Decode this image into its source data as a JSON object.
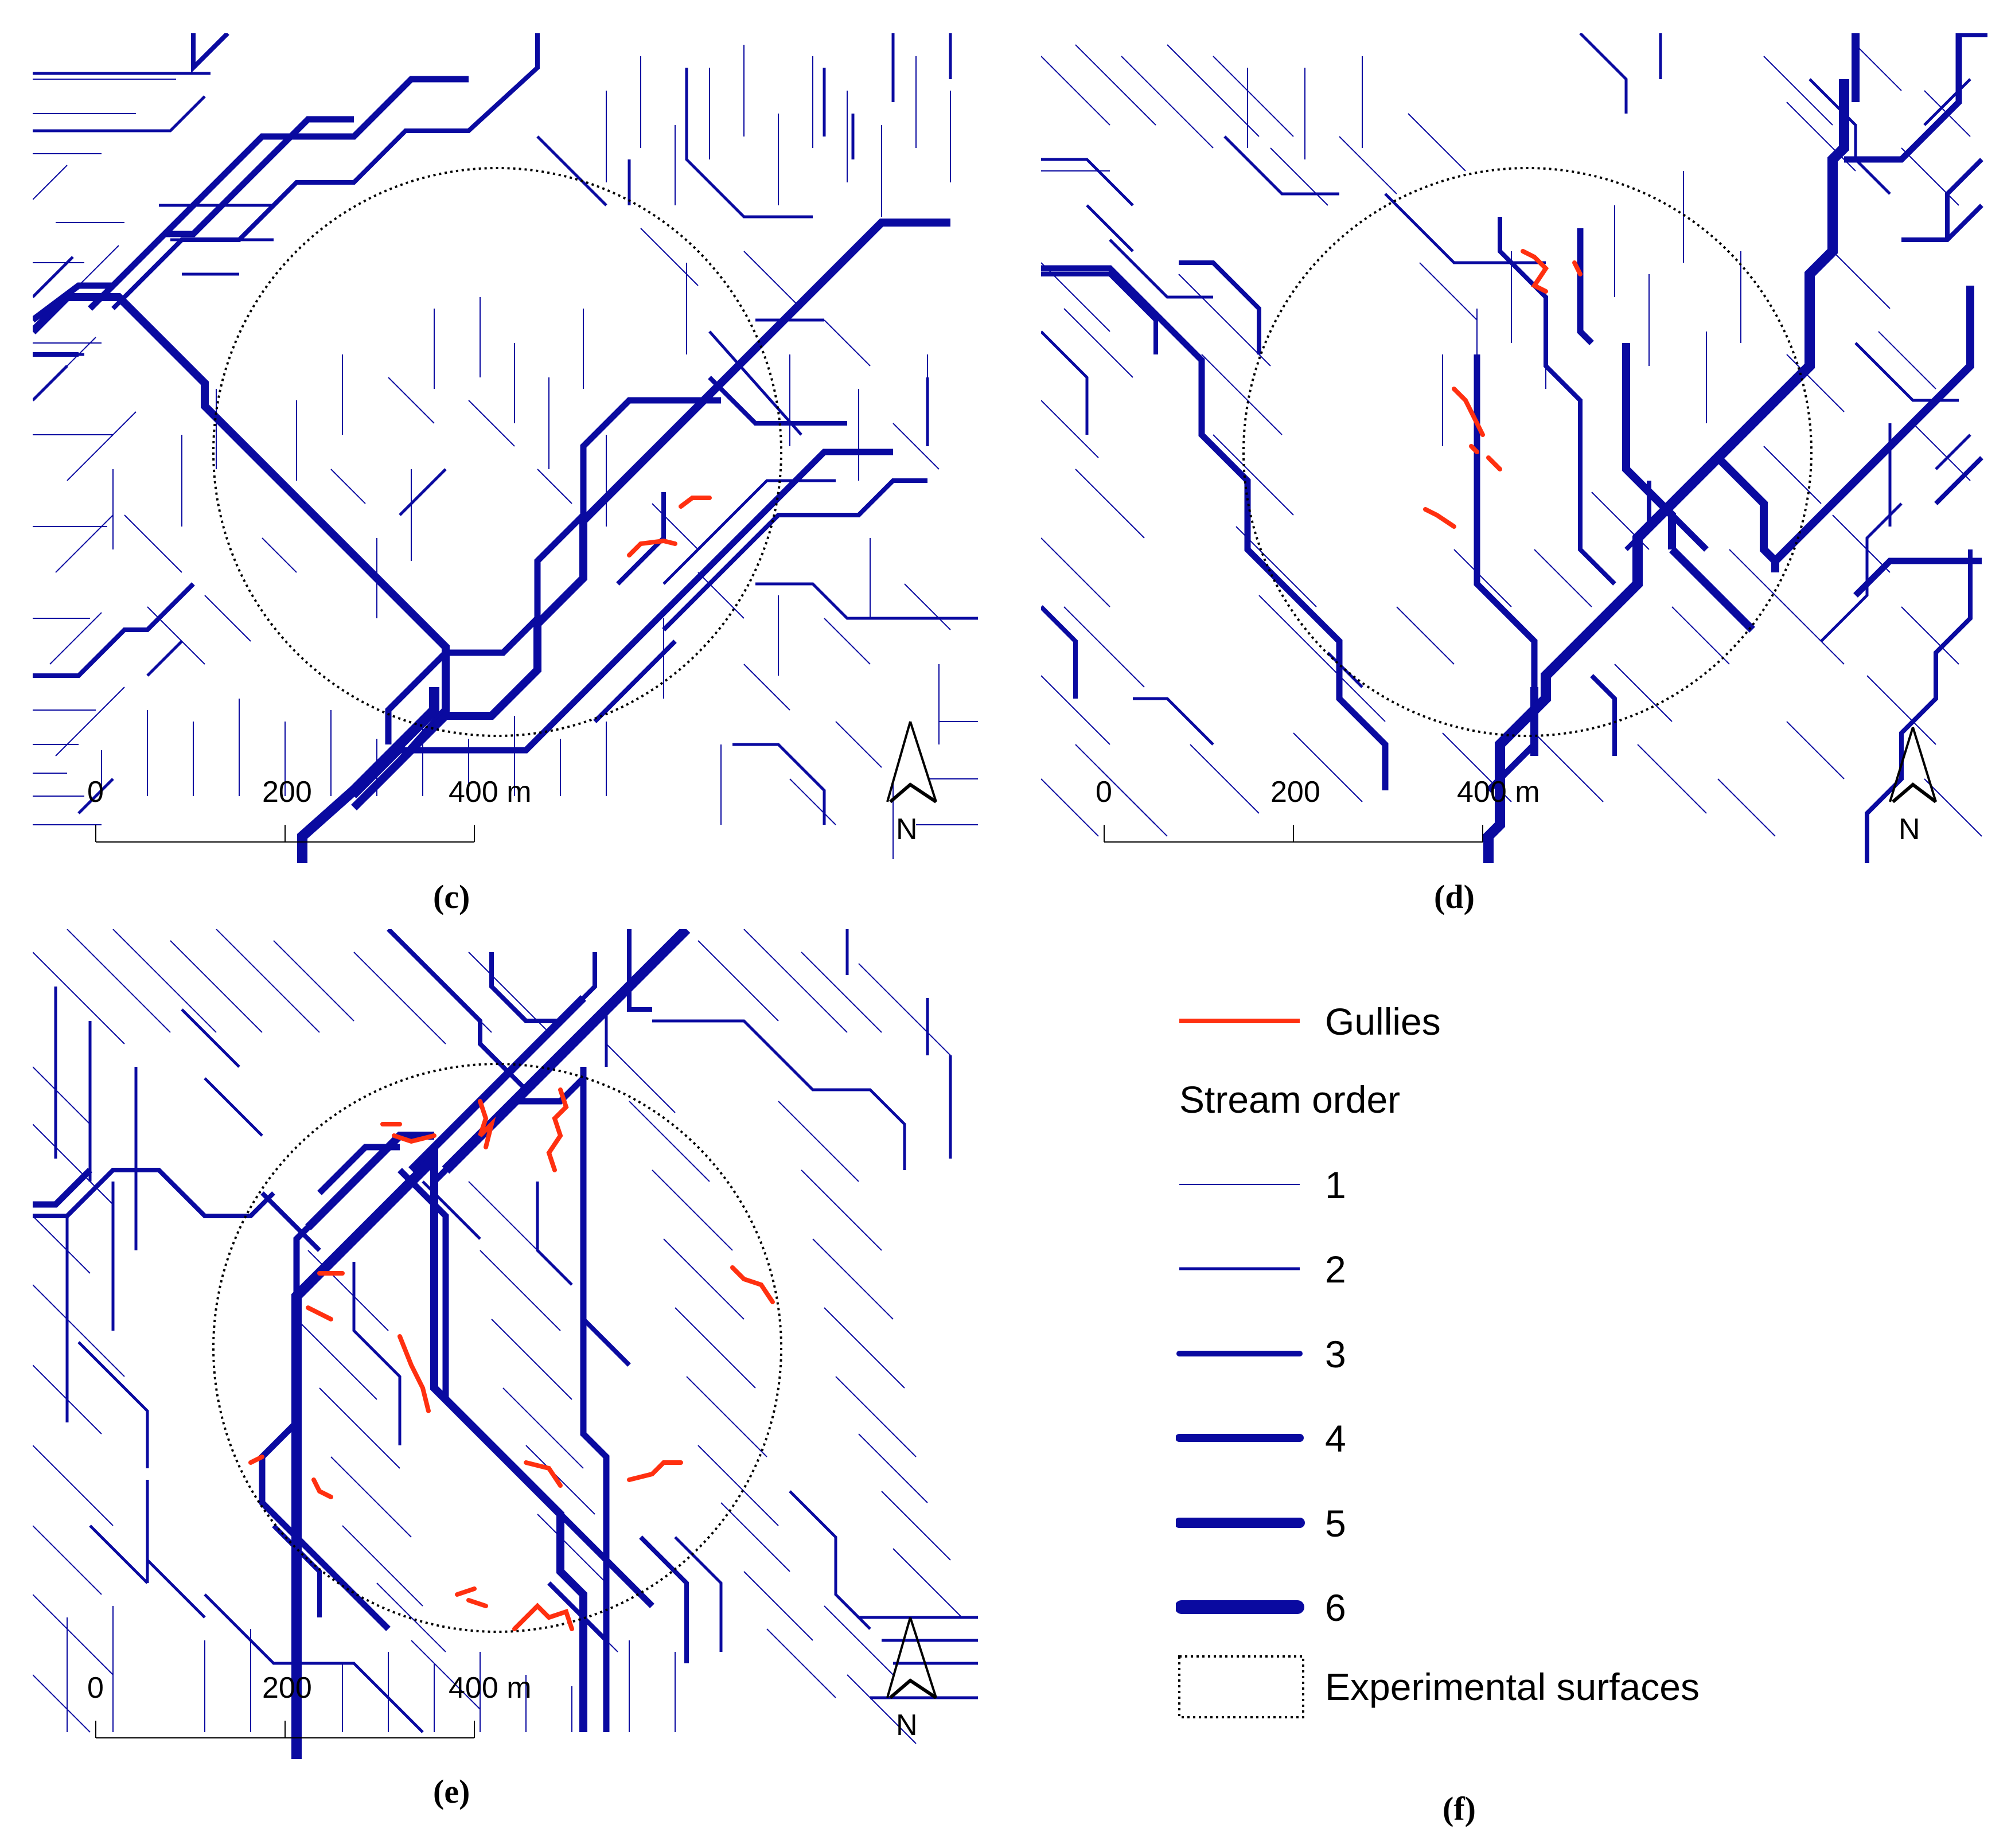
{
  "panels": [
    {
      "id": "c",
      "caption": "(c)",
      "scale_labels": [
        "0",
        "200",
        "400 m"
      ],
      "north_label": "N"
    },
    {
      "id": "d",
      "caption": "(d)",
      "scale_labels": [
        "0",
        "200",
        "400 m"
      ],
      "north_label": "N"
    },
    {
      "id": "e",
      "caption": "(e)",
      "scale_labels": [
        "0",
        "200",
        "400 m"
      ],
      "north_label": "N"
    }
  ],
  "legend_caption": "(f)",
  "legend": {
    "gullies_label": "Gullies",
    "stream_order_title": "Stream order",
    "orders": [
      "1",
      "2",
      "3",
      "4",
      "5",
      "6"
    ],
    "experimental_label": "Experimental surfaces"
  },
  "colors": {
    "stream": "#0a0aa0",
    "gully": "#ff3010",
    "circle": "#000000"
  }
}
